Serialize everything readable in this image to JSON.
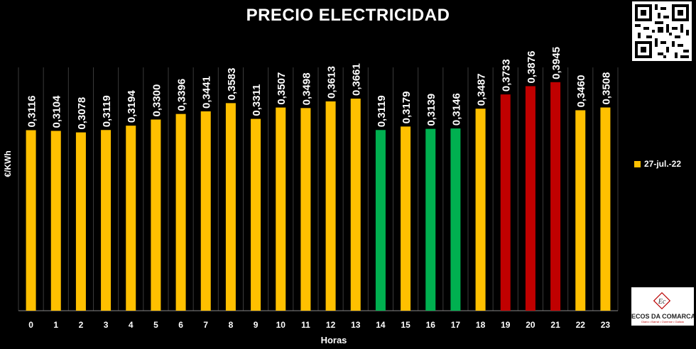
{
  "chart_data": {
    "type": "bar",
    "title": "PRECIO ELECTRICIDAD",
    "xlabel": "Horas",
    "ylabel": "€/KWh",
    "categories": [
      "0",
      "1",
      "2",
      "3",
      "4",
      "5",
      "6",
      "7",
      "8",
      "9",
      "10",
      "11",
      "12",
      "13",
      "14",
      "15",
      "16",
      "17",
      "18",
      "19",
      "20",
      "21",
      "22",
      "23"
    ],
    "series": [
      {
        "name": "27-jul.-22",
        "values": [
          0.3116,
          0.3104,
          0.3078,
          0.3119,
          0.3194,
          0.33,
          0.3396,
          0.3441,
          0.3583,
          0.3311,
          0.3507,
          0.3498,
          0.3613,
          0.3661,
          0.3119,
          0.3179,
          0.3139,
          0.3146,
          0.3487,
          0.3733,
          0.3876,
          0.3945,
          0.346,
          0.3508
        ],
        "value_labels": [
          "0,3116",
          "0,3104",
          "0,3078",
          "0,3119",
          "0,3194",
          "0,3300",
          "0,3396",
          "0,3441",
          "0,3583",
          "0,3311",
          "0,3507",
          "0,3498",
          "0,3613",
          "0,3661",
          "0,3119",
          "0,3179",
          "0,3139",
          "0,3146",
          "0,3487",
          "0,3733",
          "0,3876",
          "0,3945",
          "0,3460",
          "0,3508"
        ],
        "bar_colors": [
          "yellow",
          "yellow",
          "yellow",
          "yellow",
          "yellow",
          "yellow",
          "yellow",
          "yellow",
          "yellow",
          "yellow",
          "yellow",
          "yellow",
          "yellow",
          "yellow",
          "green",
          "yellow",
          "green",
          "green",
          "yellow",
          "red",
          "red",
          "red",
          "yellow",
          "yellow"
        ]
      }
    ],
    "ylim": [
      0,
      0.42
    ],
    "grid": "vertical",
    "legend_position": "right",
    "colors": {
      "yellow": "#ffc000",
      "green": "#00b050",
      "red": "#c00000",
      "grid": "#3a3a3a"
    }
  },
  "legend": {
    "label": "27-jul.-22"
  },
  "logo": {
    "name": "ECOS DA COMARCA",
    "tagline": "Diario • Barral • Ourense • Galicia",
    "mark": "Ec"
  }
}
